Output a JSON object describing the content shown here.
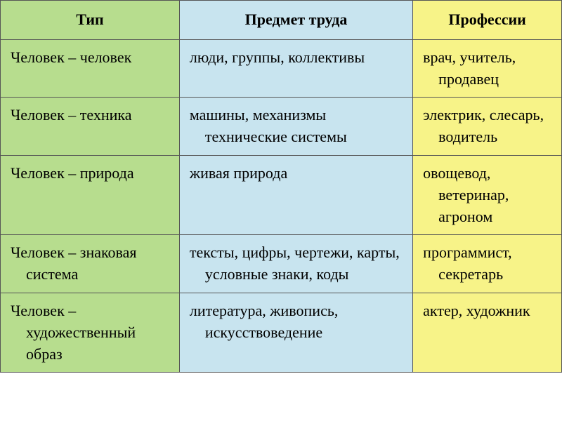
{
  "table": {
    "type": "table",
    "columns": [
      {
        "label": "Тип",
        "bg_color": "#b7dd8e",
        "width_pct": 30
      },
      {
        "label": "Предмет труда",
        "bg_color": "#c8e4ef",
        "width_pct": 35
      },
      {
        "label": "Профессии",
        "bg_color": "#f7f388",
        "width_pct": 35
      }
    ],
    "rows": [
      {
        "type": "Человек – человек",
        "subject": "люди, группы, коллективы",
        "prof": "врач, учитель, продавец"
      },
      {
        "type": "Человек – техника",
        "subject": "машины, механизмы технические системы",
        "prof": "электрик, слесарь, водитель"
      },
      {
        "type": "Человек – природа",
        "subject": "живая природа",
        "prof": "овощевод, ветеринар, агроном"
      },
      {
        "type": "Человек – знаковая система",
        "subject": "тексты, цифры, чертежи, карты, условные знаки, коды",
        "prof": "программист, секретарь"
      },
      {
        "type": "Человек – художественный образ",
        "subject": "литература, живопись, искусствоведение",
        "prof": "актер, художник"
      }
    ],
    "border_color": "#555555",
    "header_fontsize": 22,
    "cell_fontsize": 22,
    "font_family": "Times New Roman"
  }
}
